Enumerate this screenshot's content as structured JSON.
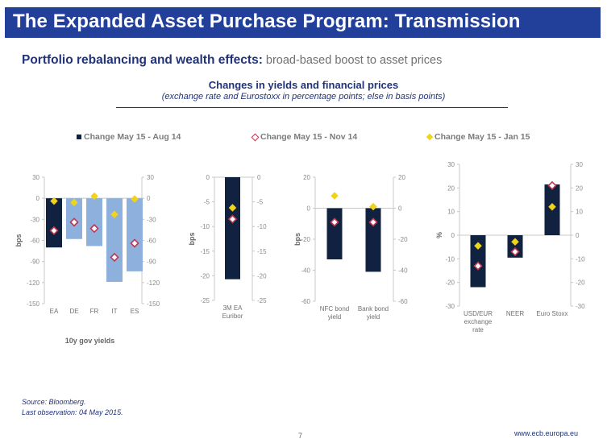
{
  "header": {
    "title": "The Expanded Asset Purchase Program: Transmission",
    "subtitle_bold": "Portfolio rebalancing and wealth effects:",
    "subtitle_light": " broad-based boost to asset prices"
  },
  "colors": {
    "title_bar": "#22409a",
    "navy": "#10223f",
    "light_blue": "#8eb0dc",
    "red": "#c0364f",
    "yellow": "#f2d31b"
  },
  "chart_data": {
    "type": "bar",
    "title": "Changes in yields and financial prices",
    "subtitle": "(exchange rate and Eurostoxx in percentage points; else in basis points)",
    "legend": [
      {
        "name": "Change May 15 - Aug 14",
        "marker": "bar"
      },
      {
        "name": "Change May 15 - Nov 14",
        "marker": "red-diamond"
      },
      {
        "name": "Change May 15 - Jan 15",
        "marker": "yellow-diamond"
      }
    ],
    "legend_placement": "top",
    "panels": [
      {
        "id": "gov",
        "ylabel": "bps",
        "group_label": "10y gov yields",
        "ylim": [
          -150,
          30
        ],
        "ticks": [
          30,
          0,
          -30,
          -60,
          -90,
          -120,
          -150
        ],
        "categories": [
          "EA",
          "DE",
          "FR",
          "IT",
          "ES"
        ],
        "bar_colors": [
          "navy",
          "light_blue",
          "light_blue",
          "light_blue",
          "light_blue"
        ],
        "series": [
          {
            "name": "Change May 15 - Aug 14",
            "values": [
              -70,
              -58,
              -68,
              -119,
              -104
            ]
          },
          {
            "name": "Change May 15 - Nov 14",
            "values": [
              -46,
              -34,
              -43,
              -84,
              -64
            ]
          },
          {
            "name": "Change May 15 - Jan 15",
            "values": [
              -4,
              -6,
              3,
              -23,
              -1
            ]
          }
        ]
      },
      {
        "id": "euribor",
        "ylabel": "bps",
        "group_label": "",
        "ylim": [
          -25,
          0
        ],
        "ticks": [
          0,
          -5,
          -10,
          -15,
          -20,
          -25
        ],
        "categories": [
          "3M EA|Euribor"
        ],
        "bar_colors": [
          "navy"
        ],
        "series": [
          {
            "name": "Change May 15 - Aug 14",
            "values": [
              -20.7
            ]
          },
          {
            "name": "Change May 15 - Nov 14",
            "values": [
              -8.5
            ]
          },
          {
            "name": "Change May 15 - Jan 15",
            "values": [
              -6.2
            ]
          }
        ]
      },
      {
        "id": "bonds",
        "ylabel": "bps",
        "group_label": "",
        "ylim": [
          -60,
          20
        ],
        "ticks": [
          20,
          0,
          -20,
          -40,
          -60
        ],
        "categories": [
          "NFC bond|yield",
          "Bank bond|yield"
        ],
        "bar_colors": [
          "navy",
          "navy"
        ],
        "series": [
          {
            "name": "Change May 15 - Aug 14",
            "values": [
              -33,
              -41
            ]
          },
          {
            "name": "Change May 15 - Nov 14",
            "values": [
              -9,
              -9
            ]
          },
          {
            "name": "Change May 15 - Jan 15",
            "values": [
              8,
              1
            ]
          }
        ]
      },
      {
        "id": "fx",
        "ylabel": "%",
        "group_label": "",
        "ylim": [
          -30,
          30
        ],
        "ticks": [
          30,
          20,
          10,
          0,
          -10,
          -20,
          -30
        ],
        "categories": [
          "USD/EUR|exchange|rate",
          "NEER",
          "Euro Stoxx"
        ],
        "bar_colors": [
          "navy",
          "navy",
          "navy"
        ],
        "series": [
          {
            "name": "Change May 15 - Aug 14",
            "values": [
              -22,
              -9.5,
              21.5
            ]
          },
          {
            "name": "Change May 15 - Nov 14",
            "values": [
              -13,
              -7,
              21
            ]
          },
          {
            "name": "Change May 15 - Jan 15",
            "values": [
              -4.5,
              -2.8,
              12
            ]
          }
        ]
      }
    ]
  },
  "footer": {
    "source": "Source: Bloomberg.",
    "last_obs": "Last observation: 04 May 2015.",
    "page": "7",
    "url": "www.ecb.europa.eu"
  }
}
